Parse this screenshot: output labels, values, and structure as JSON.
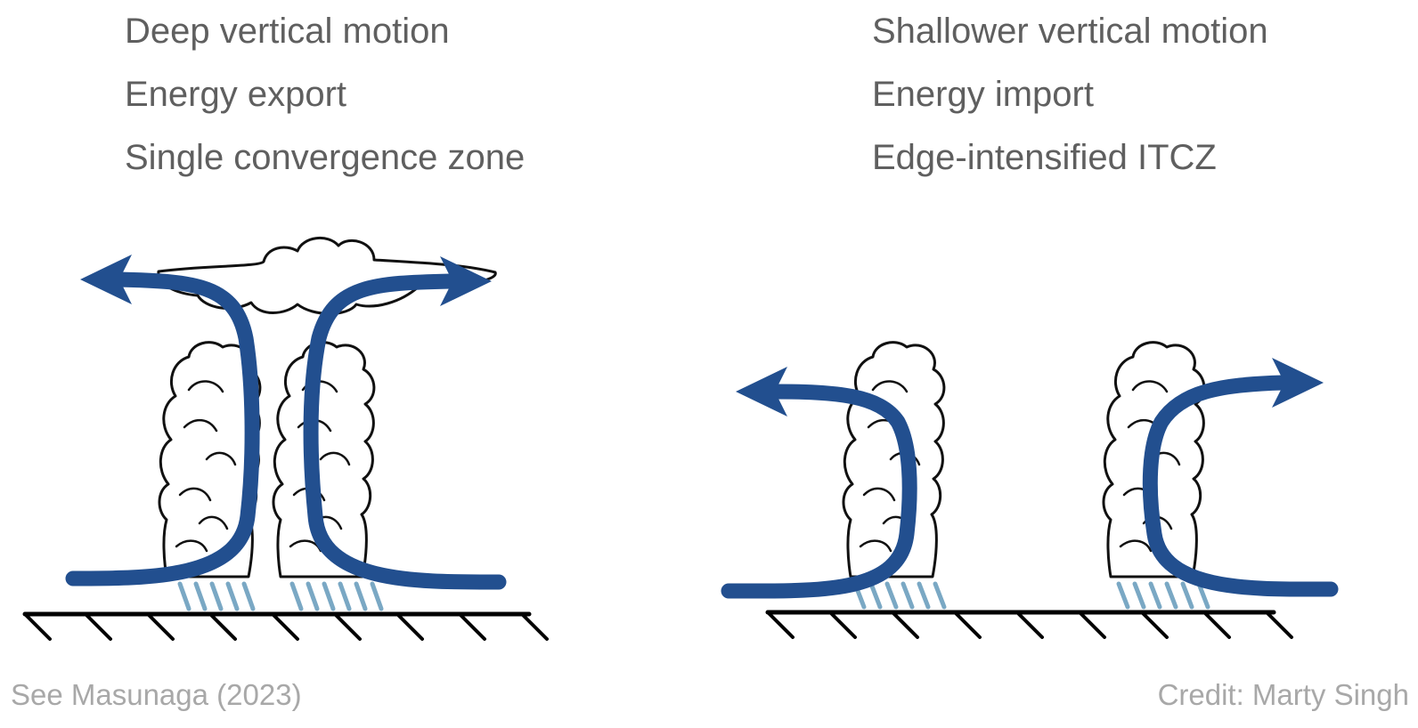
{
  "left_panel": {
    "lines": [
      "Deep vertical motion",
      "Energy export",
      "Single convergence zone"
    ]
  },
  "right_panel": {
    "lines": [
      "Shallower vertical motion",
      "Energy import",
      "Edge-intensified ITCZ"
    ]
  },
  "footer": {
    "left": "See Masunaga (2023)",
    "right": "Credit: Marty Singh"
  },
  "colors": {
    "flow_arrow": "#224f8f",
    "rain": "#7aa8c4",
    "text": "#5f5f5f",
    "footer_text": "#a8a8a8"
  }
}
